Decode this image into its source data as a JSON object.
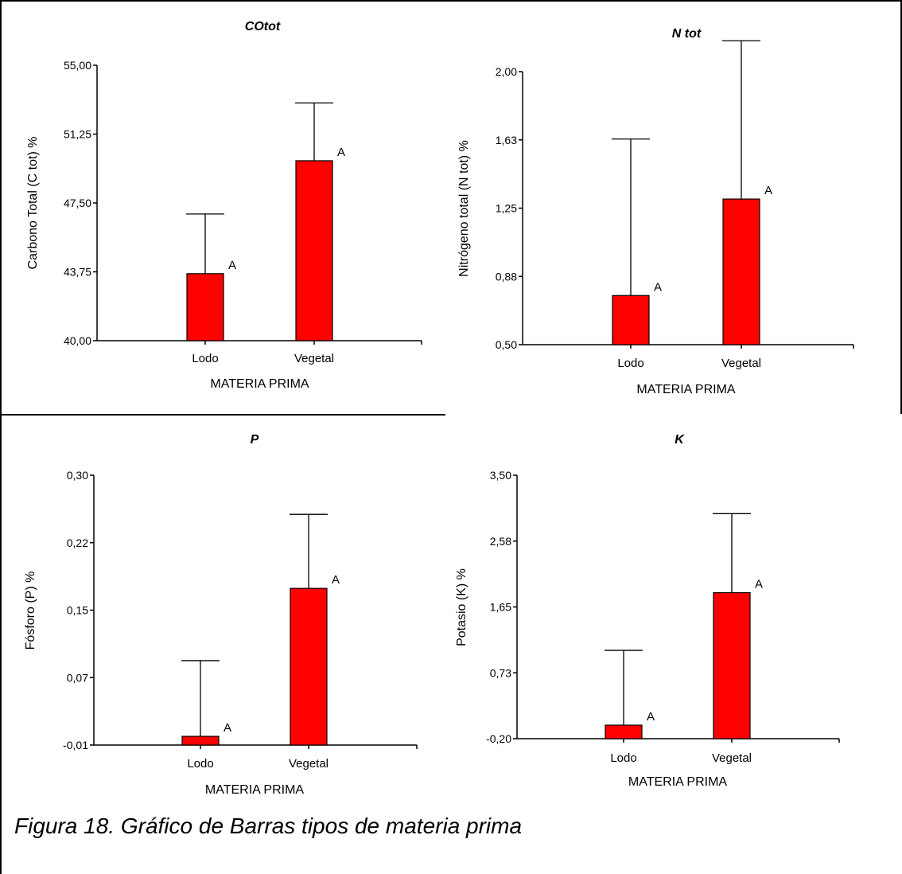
{
  "chart_data": [
    {
      "type": "bar",
      "title": "COtot",
      "xlabel": "MATERIA PRIMA",
      "ylabel": "Carbono Total (C tot) %",
      "categories": [
        "Lodo",
        "Vegetal"
      ],
      "values": [
        43.65,
        49.8
      ],
      "error_upper": [
        46.9,
        52.95
      ],
      "data_labels": [
        "A",
        "A"
      ],
      "ylim": [
        40.0,
        55.0
      ],
      "yticks": [
        "40,00",
        "43,75",
        "47,50",
        "51,25",
        "55,00"
      ],
      "bar_color": "#ff0000",
      "grid": false
    },
    {
      "type": "bar",
      "title": "N tot",
      "xlabel": "MATERIA PRIMA",
      "ylabel": "Nitrógeno total (N tot) %",
      "categories": [
        "Lodo",
        "Vegetal"
      ],
      "values": [
        0.77,
        1.3
      ],
      "error_upper": [
        1.63,
        2.17
      ],
      "data_labels": [
        "A",
        "A"
      ],
      "ylim": [
        0.5,
        2.0
      ],
      "yticks": [
        "0,50",
        "0,88",
        "1,25",
        "1,63",
        "2,00"
      ],
      "bar_color": "#ff0000",
      "grid": false
    },
    {
      "type": "bar",
      "title": "P",
      "xlabel": "MATERIA PRIMA",
      "ylabel": "Fósforo (P) %",
      "categories": [
        "Lodo",
        "Vegetal"
      ],
      "values": [
        0.0,
        0.17
      ],
      "error_upper": [
        0.087,
        0.255
      ],
      "data_labels": [
        "A",
        "A"
      ],
      "ylim": [
        -0.01,
        0.3
      ],
      "yticks": [
        "-0,01",
        "0,07",
        "0,15",
        "0,22",
        "0,30"
      ],
      "bar_color": "#ff0000",
      "grid": false
    },
    {
      "type": "bar",
      "title": "K",
      "xlabel": "MATERIA PRIMA",
      "ylabel": "Potasio (K) %",
      "categories": [
        "Lodo",
        "Vegetal"
      ],
      "values": [
        -0.01,
        1.85
      ],
      "error_upper": [
        1.04,
        2.96
      ],
      "data_labels": [
        "A",
        "A"
      ],
      "ylim": [
        -0.2,
        3.5
      ],
      "yticks": [
        "-0,20",
        "0,73",
        "1,65",
        "2,58",
        "3,50"
      ],
      "bar_color": "#ff0000",
      "grid": false
    }
  ],
  "caption": "Figura 18. Gráfico de Barras tipos de materia prima"
}
